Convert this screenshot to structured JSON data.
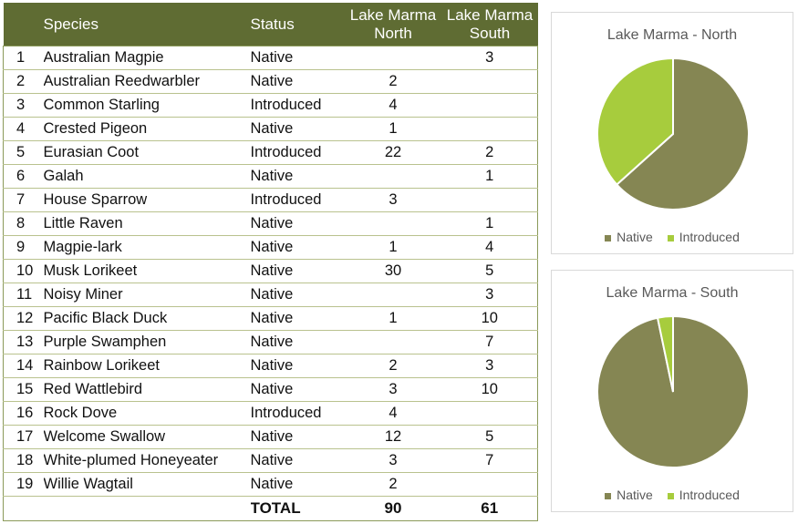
{
  "table": {
    "headers": [
      "",
      "Species",
      "Status",
      "Lake Marma North",
      "Lake Marma South"
    ],
    "header_lines": {
      "north": [
        "Lake Marma",
        "North"
      ],
      "south": [
        "Lake Marma",
        "South"
      ]
    },
    "rows": [
      {
        "num": "1",
        "species": "Australian Magpie",
        "status": "Native",
        "north": "",
        "south": "3"
      },
      {
        "num": "2",
        "species": "Australian Reedwarbler",
        "status": "Native",
        "north": "2",
        "south": ""
      },
      {
        "num": "3",
        "species": "Common Starling",
        "status": "Introduced",
        "north": "4",
        "south": ""
      },
      {
        "num": "4",
        "species": "Crested Pigeon",
        "status": "Native",
        "north": "1",
        "south": ""
      },
      {
        "num": "5",
        "species": "Eurasian Coot",
        "status": "Introduced",
        "north": "22",
        "south": "2"
      },
      {
        "num": "6",
        "species": "Galah",
        "status": "Native",
        "north": "",
        "south": "1"
      },
      {
        "num": "7",
        "species": "House Sparrow",
        "status": "Introduced",
        "north": "3",
        "south": ""
      },
      {
        "num": "8",
        "species": "Little Raven",
        "status": "Native",
        "north": "",
        "south": "1"
      },
      {
        "num": "9",
        "species": "Magpie-lark",
        "status": "Native",
        "north": "1",
        "south": "4"
      },
      {
        "num": "10",
        "species": "Musk Lorikeet",
        "status": "Native",
        "north": "30",
        "south": "5"
      },
      {
        "num": "11",
        "species": "Noisy Miner",
        "status": "Native",
        "north": "",
        "south": "3"
      },
      {
        "num": "12",
        "species": "Pacific Black Duck",
        "status": "Native",
        "north": "1",
        "south": "10"
      },
      {
        "num": "13",
        "species": "Purple Swamphen",
        "status": "Native",
        "north": "",
        "south": "7"
      },
      {
        "num": "14",
        "species": "Rainbow Lorikeet",
        "status": "Native",
        "north": "2",
        "south": "3"
      },
      {
        "num": "15",
        "species": "Red Wattlebird",
        "status": "Native",
        "north": "3",
        "south": "10"
      },
      {
        "num": "16",
        "species": "Rock Dove",
        "status": "Introduced",
        "north": "4",
        "south": ""
      },
      {
        "num": "17",
        "species": "Welcome Swallow",
        "status": "Native",
        "north": "12",
        "south": "5"
      },
      {
        "num": "18",
        "species": "White-plumed Honeyeater",
        "status": "Native",
        "north": "3",
        "south": "7"
      },
      {
        "num": "19",
        "species": "Willie Wagtail",
        "status": "Native",
        "north": "2",
        "south": ""
      }
    ],
    "total": {
      "label": "TOTAL",
      "north": "90",
      "south": "61"
    }
  },
  "colors": {
    "header_bg": "#5f6c33",
    "native": "#858653",
    "introduced": "#a7cc3d",
    "text_muted": "#595959"
  },
  "chart_data": [
    {
      "type": "pie",
      "title": "Lake Marma - North",
      "categories": [
        "Native",
        "Introduced"
      ],
      "values": [
        57,
        33
      ],
      "colors": [
        "#858653",
        "#a7cc3d"
      ],
      "legend": "bottom"
    },
    {
      "type": "pie",
      "title": "Lake Marma - South",
      "categories": [
        "Native",
        "Introduced"
      ],
      "values": [
        59,
        2
      ],
      "colors": [
        "#858653",
        "#a7cc3d"
      ],
      "legend": "bottom"
    }
  ]
}
